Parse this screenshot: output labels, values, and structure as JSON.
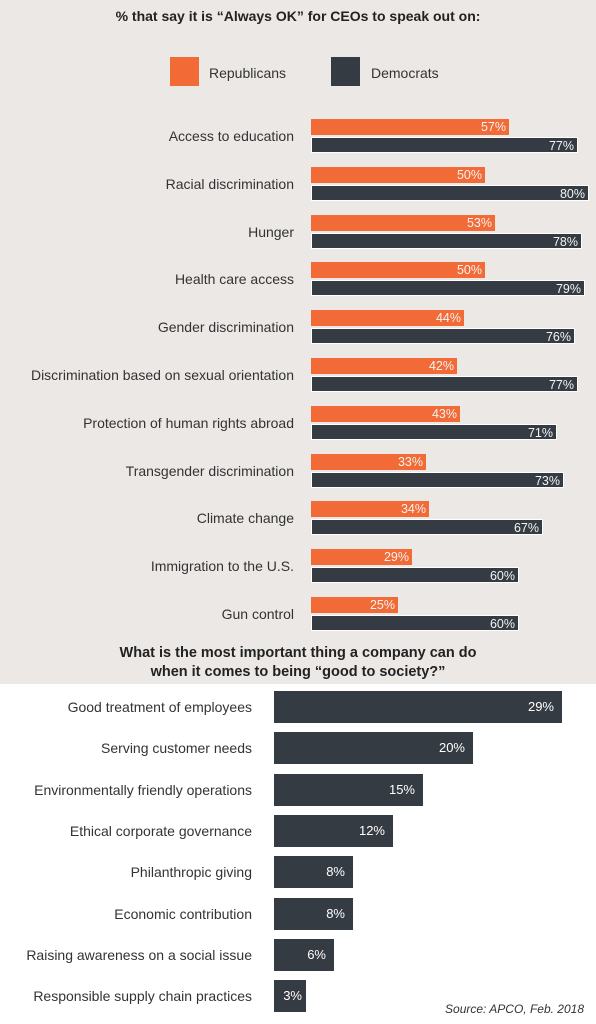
{
  "chart_data": [
    {
      "type": "bar",
      "title": "% that say it is “Always OK” for CEOs to speak out on:",
      "categories": [
        "Access to education",
        "Racial discrimination",
        "Hunger",
        "Health care access",
        "Gender discrimination",
        "Discrimination based on sexual orientation",
        "Protection of human rights abroad",
        "Transgender discrimination",
        "Climate change",
        "Immigration to the U.S.",
        "Gun control"
      ],
      "series": [
        {
          "name": "Republicans",
          "color": "#f26a36",
          "values": [
            57,
            50,
            53,
            50,
            44,
            42,
            43,
            33,
            34,
            29,
            25
          ]
        },
        {
          "name": "Democrats",
          "color": "#353b43",
          "values": [
            77,
            80,
            78,
            79,
            76,
            77,
            71,
            73,
            67,
            60,
            60
          ]
        }
      ],
      "value_suffix": "%",
      "legend": "top"
    },
    {
      "type": "bar",
      "title_line1": "What is the most important thing a company can do",
      "title_line2": "when it comes to being “good to society?”",
      "categories": [
        "Good treatment of employees",
        "Serving customer needs",
        "Environmentally friendly operations",
        "Ethical corporate governance",
        "Philanthropic giving",
        "Economic contribution",
        "Raising awareness on a social issue",
        "Responsible supply chain practices"
      ],
      "values": [
        29,
        20,
        15,
        12,
        8,
        8,
        6,
        3
      ],
      "value_suffix": "%",
      "color": "#353b43"
    }
  ],
  "source": "Source: APCO, Feb. 2018"
}
